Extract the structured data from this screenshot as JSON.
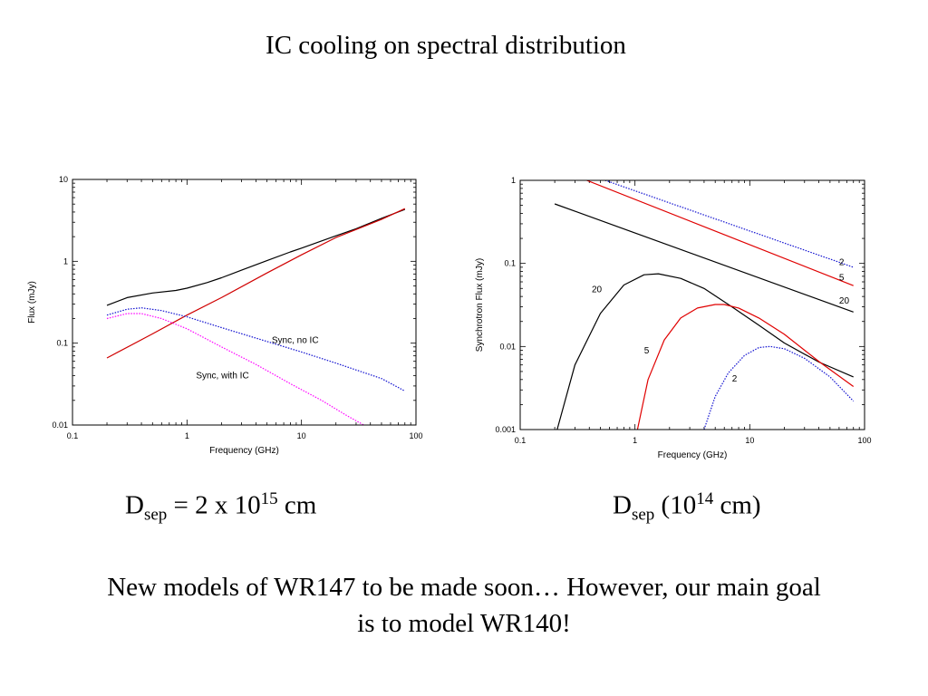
{
  "slide": {
    "title": "IC cooling on spectral distribution",
    "caption_left": {
      "base": "D",
      "sub": "sep",
      "mid": " = 2 x 10",
      "sup": "15",
      "tail": " cm"
    },
    "caption_right": {
      "base": "D",
      "sub": "sep",
      "mid": " (10",
      "sup": "14",
      "tail": " cm)"
    },
    "footer_line1": "New models of WR147 to be made soon… However, our main goal",
    "footer_line2": "is to model WR140!"
  },
  "chart_data": [
    {
      "type": "line",
      "xlabel": "Frequency (GHz)",
      "ylabel": "Flux (mJy)",
      "xscale": "log",
      "yscale": "log",
      "xlim": [
        0.1,
        100
      ],
      "ylim": [
        0.01,
        10
      ],
      "xticks": [
        "0.1",
        "1",
        "10",
        "100"
      ],
      "yticks": [
        "0.01",
        "0.1",
        "1",
        "10"
      ],
      "annotations": [
        {
          "text": "Sync, no IC",
          "x": 5.5,
          "y": 0.1
        },
        {
          "text": "Sync, with IC",
          "x": 1.2,
          "y": 0.037
        }
      ],
      "series": [
        {
          "color": "#000000",
          "style": "solid",
          "x": [
            0.2,
            0.3,
            0.5,
            0.8,
            1,
            1.5,
            2,
            3,
            5,
            8,
            10,
            20,
            30,
            50,
            80
          ],
          "y": [
            0.29,
            0.36,
            0.41,
            0.44,
            0.47,
            0.55,
            0.63,
            0.78,
            1.02,
            1.3,
            1.45,
            2.05,
            2.5,
            3.35,
            4.3
          ]
        },
        {
          "color": "#d00000",
          "style": "solid",
          "x": [
            0.2,
            0.5,
            1,
            2,
            5,
            10,
            20,
            50,
            80
          ],
          "y": [
            0.066,
            0.13,
            0.22,
            0.36,
            0.72,
            1.2,
            1.95,
            3.25,
            4.4
          ]
        },
        {
          "color": "#1010d0",
          "style": "dotted",
          "x": [
            0.2,
            0.3,
            0.4,
            0.6,
            1,
            2,
            5,
            10,
            20,
            50,
            80
          ],
          "y": [
            0.22,
            0.26,
            0.27,
            0.25,
            0.21,
            0.155,
            0.105,
            0.078,
            0.057,
            0.037,
            0.026
          ]
        },
        {
          "color": "#ff00ff",
          "style": "dotted",
          "x": [
            0.2,
            0.3,
            0.4,
            0.6,
            1,
            2,
            4,
            8,
            15,
            25,
            35
          ],
          "y": [
            0.2,
            0.23,
            0.23,
            0.2,
            0.15,
            0.09,
            0.055,
            0.032,
            0.02,
            0.013,
            0.01
          ]
        }
      ]
    },
    {
      "type": "line",
      "xlabel": "Frequency (GHz)",
      "ylabel": "Synchrotron Flux (mJy)",
      "xscale": "log",
      "yscale": "log",
      "xlim": [
        0.1,
        100
      ],
      "ylim": [
        0.001,
        1
      ],
      "xticks": [
        "0.1",
        "1",
        "10",
        "100"
      ],
      "yticks": [
        "0.001",
        "0.01",
        "0.1",
        "1"
      ],
      "annotations": [
        {
          "text": "2",
          "x": 60,
          "y": 0.095
        },
        {
          "text": "5",
          "x": 60,
          "y": 0.062
        },
        {
          "text": "20",
          "x": 60,
          "y": 0.033
        },
        {
          "text": "20",
          "x": 0.42,
          "y": 0.045
        },
        {
          "text": "5",
          "x": 1.2,
          "y": 0.0082
        },
        {
          "text": "2",
          "x": 7.0,
          "y": 0.0038
        }
      ],
      "series": [
        {
          "color": "#1010d0",
          "style": "dotted",
          "x": [
            0.55,
            80
          ],
          "y": [
            1.0,
            0.09
          ]
        },
        {
          "color": "#e00000",
          "style": "solid",
          "x": [
            0.38,
            80
          ],
          "y": [
            1.0,
            0.054
          ]
        },
        {
          "color": "#000000",
          "style": "solid",
          "x": [
            0.2,
            80
          ],
          "y": [
            0.52,
            0.026
          ]
        },
        {
          "color": "#000000",
          "style": "solid",
          "x": [
            0.21,
            0.3,
            0.5,
            0.8,
            1.2,
            1.6,
            2.5,
            4,
            7,
            12,
            20,
            40,
            80
          ],
          "y": [
            0.001,
            0.006,
            0.025,
            0.055,
            0.073,
            0.075,
            0.066,
            0.05,
            0.03,
            0.018,
            0.011,
            0.0065,
            0.0043
          ]
        },
        {
          "color": "#e00000",
          "style": "solid",
          "x": [
            1.05,
            1.3,
            1.8,
            2.5,
            3.5,
            5,
            6,
            8,
            12,
            20,
            40,
            80
          ],
          "y": [
            0.001,
            0.004,
            0.012,
            0.022,
            0.029,
            0.032,
            0.032,
            0.029,
            0.022,
            0.014,
            0.0066,
            0.0033
          ]
        },
        {
          "color": "#1010d0",
          "style": "dotted",
          "x": [
            4.0,
            5,
            6.5,
            9,
            12,
            15,
            20,
            30,
            50,
            80
          ],
          "y": [
            0.001,
            0.0025,
            0.0048,
            0.0078,
            0.0097,
            0.01,
            0.0094,
            0.0072,
            0.0043,
            0.0022
          ]
        }
      ]
    }
  ]
}
